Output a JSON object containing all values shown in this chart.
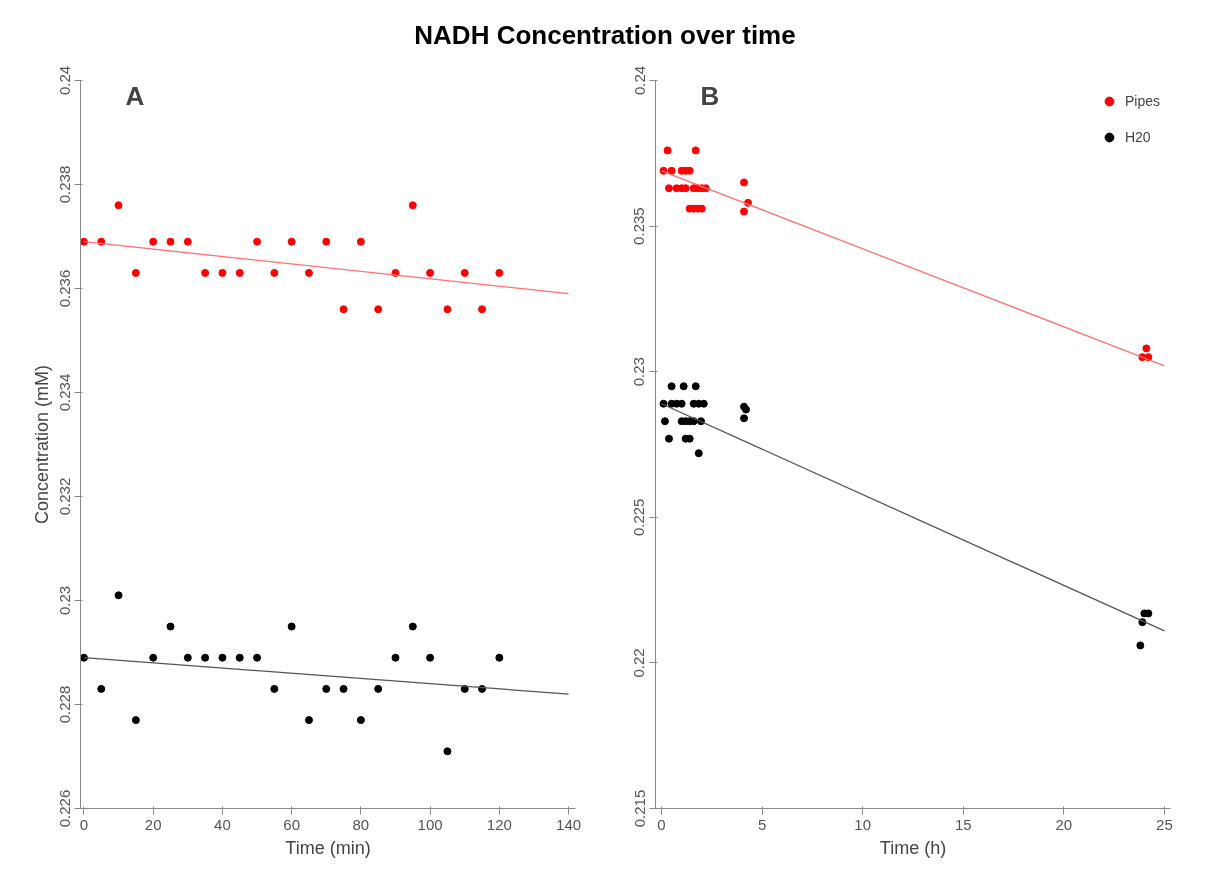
{
  "chart_data": [
    {
      "type": "scatter",
      "title": "NADH Concentration over time",
      "annotations": [
        "A"
      ],
      "xlabel": "Time (min)",
      "ylabel": "Concentration (mM)",
      "xlim": [
        -1,
        142
      ],
      "xticks": [
        0,
        20,
        40,
        60,
        80,
        100,
        120,
        140
      ],
      "ylim": [
        0.226,
        0.24
      ],
      "yticks": [
        0.226,
        0.228,
        0.23,
        0.232,
        0.234,
        0.236,
        0.238,
        0.24
      ],
      "grid": false,
      "legend": false,
      "marker": "circle",
      "series": [
        {
          "color": "#ff0000",
          "x": [
            0,
            5,
            10,
            15,
            20,
            25,
            30,
            35,
            40,
            45,
            50,
            55,
            60,
            65,
            70,
            75,
            80,
            85,
            90,
            95,
            100,
            105,
            110,
            115,
            120
          ],
          "values": [
            0.2369,
            0.2369,
            0.2376,
            0.2363,
            0.2369,
            0.2369,
            0.2369,
            0.2363,
            0.2363,
            0.2363,
            0.2369,
            0.2363,
            0.2369,
            0.2363,
            0.2369,
            0.2356,
            0.2369,
            0.2356,
            0.2363,
            0.2376,
            0.2363,
            0.2356,
            0.2363,
            0.2356,
            0.2363
          ]
        },
        {
          "color": "#000000",
          "x": [
            0,
            5,
            10,
            15,
            20,
            25,
            30,
            35,
            40,
            45,
            50,
            55,
            60,
            65,
            70,
            75,
            80,
            85,
            90,
            95,
            100,
            105,
            110,
            115,
            120
          ],
          "values": [
            0.2289,
            0.2283,
            0.2301,
            0.2277,
            0.2289,
            0.2295,
            0.2289,
            0.2289,
            0.2289,
            0.2289,
            0.2289,
            0.2283,
            0.2295,
            0.2277,
            0.2283,
            0.2283,
            0.2277,
            0.2283,
            0.2289,
            0.2295,
            0.2289,
            0.2271,
            0.2283,
            0.2283,
            0.2289
          ]
        },
        {
          "type": "line",
          "marker": "none",
          "color": "#ff7070",
          "x": [
            0,
            140
          ],
          "values": [
            0.2369,
            0.2359
          ]
        },
        {
          "type": "line",
          "marker": "none",
          "color": "#555555",
          "x": [
            0,
            140
          ],
          "values": [
            0.2289,
            0.2282
          ]
        }
      ]
    },
    {
      "type": "scatter",
      "annotations": [
        "B"
      ],
      "xlabel": "Time (h)",
      "xlim": [
        -0.3,
        25.3
      ],
      "xticks": [
        0,
        5,
        10,
        15,
        20,
        25
      ],
      "ylim": [
        0.215,
        0.24
      ],
      "yticks": [
        0.215,
        0.22,
        0.225,
        0.23,
        0.235,
        0.24
      ],
      "grid": false,
      "legend": "top right",
      "marker": "circle",
      "series": [
        {
          "name": "Pipes",
          "color": "#ff0000",
          "x": [
            0.3,
            1.7,
            0.1,
            0.5,
            1.0,
            1.2,
            1.4,
            0.37,
            0.75,
            1.0,
            1.2,
            1.6,
            1.8,
            2.0,
            2.2,
            1.4,
            1.6,
            1.8,
            2.0,
            4.1,
            4.1,
            4.3,
            23.9,
            24.2,
            24.1
          ],
          "values": [
            0.2376,
            0.2376,
            0.2369,
            0.2369,
            0.2369,
            0.2369,
            0.2369,
            0.2363,
            0.2363,
            0.2363,
            0.2363,
            0.2363,
            0.2363,
            0.2363,
            0.2363,
            0.2356,
            0.2356,
            0.2356,
            0.2356,
            0.2365,
            0.2355,
            0.2358,
            0.2305,
            0.2305,
            0.2308
          ]
        },
        {
          "name": "H20",
          "color": "#000000",
          "x": [
            0.5,
            1.1,
            1.7,
            0.1,
            0.5,
            0.75,
            1.0,
            1.6,
            1.85,
            2.1,
            0.17,
            1.0,
            1.2,
            1.4,
            1.6,
            1.96,
            0.37,
            1.2,
            1.4,
            1.85,
            4.1,
            4.2,
            4.1,
            24.0,
            24.2,
            23.9,
            23.8
          ],
          "values": [
            0.2295,
            0.2295,
            0.2295,
            0.2289,
            0.2289,
            0.2289,
            0.2289,
            0.2289,
            0.2289,
            0.2289,
            0.2283,
            0.2283,
            0.2283,
            0.2283,
            0.2283,
            0.2283,
            0.2277,
            0.2277,
            0.2277,
            0.2272,
            0.2288,
            0.2287,
            0.2284,
            0.2217,
            0.2217,
            0.2214,
            0.2206
          ]
        },
        {
          "type": "line",
          "marker": "none",
          "color": "#ff7070",
          "x": [
            0,
            25
          ],
          "values": [
            0.2369,
            0.2302
          ]
        },
        {
          "type": "line",
          "marker": "none",
          "color": "#555555",
          "x": [
            0,
            25
          ],
          "values": [
            0.2289,
            0.2211
          ]
        }
      ]
    }
  ]
}
